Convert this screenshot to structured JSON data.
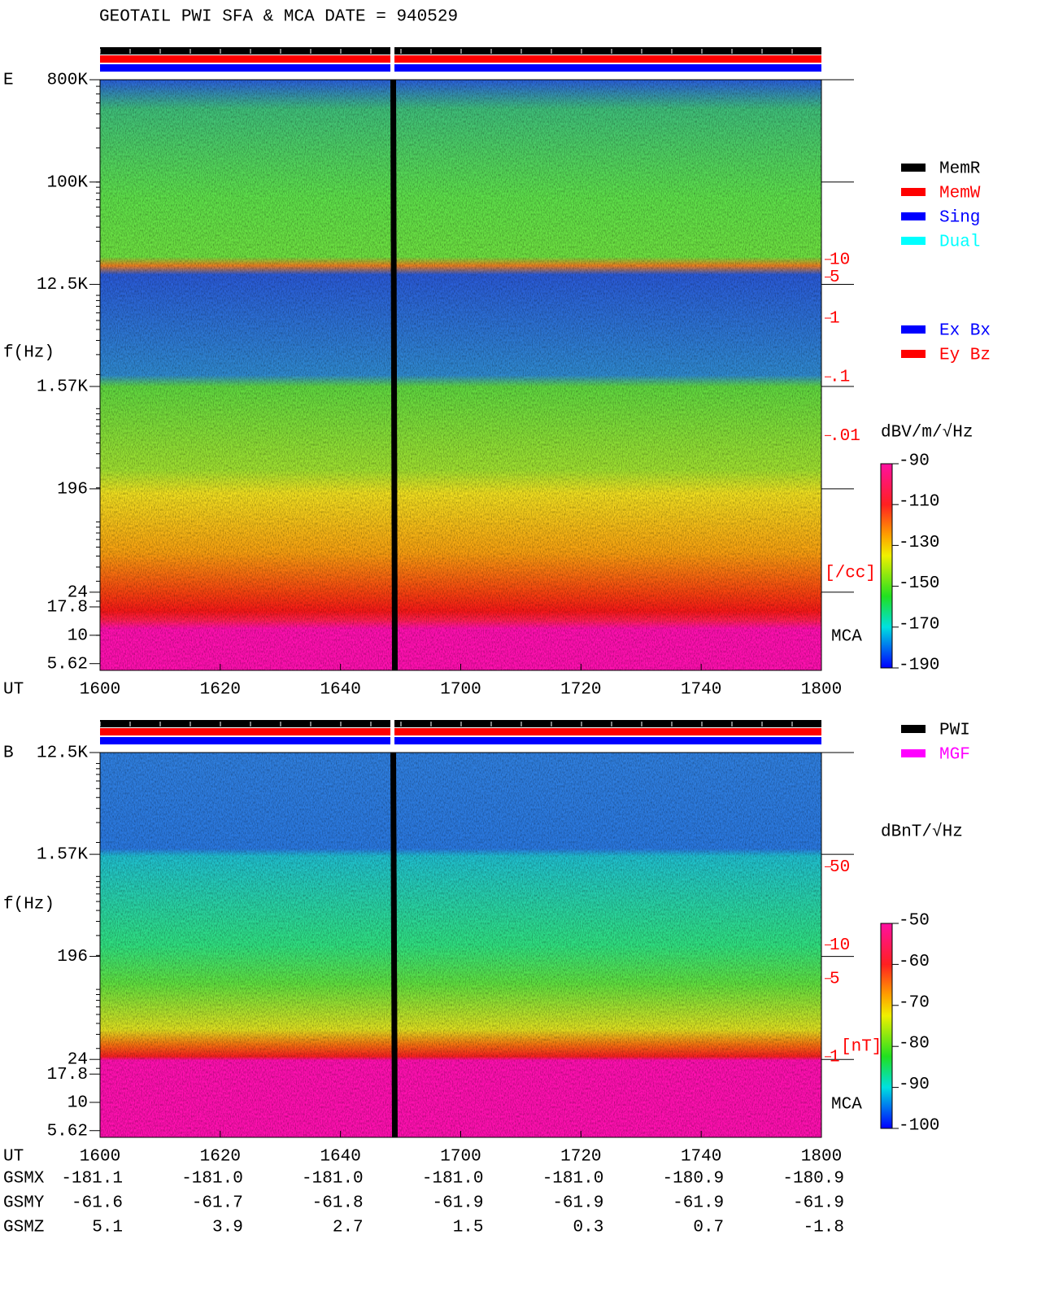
{
  "title": "GEOTAIL   PWI SFA & MCA   DATE = 940529",
  "chart_data": [
    {
      "type": "spectrogram",
      "panel": "E",
      "ylabel": "f(Hz)",
      "xlabel": "UT",
      "yscale": "log",
      "ylim": [
        4.9,
        800000
      ],
      "yticks": [
        {
          "value": 800000,
          "label": "800K"
        },
        {
          "value": 100000,
          "label": "100K"
        },
        {
          "value": 12500,
          "label": "12.5K"
        },
        {
          "value": 1570,
          "label": "1.57K"
        },
        196,
        24,
        17.8,
        10,
        5.62
      ],
      "xticks": [
        "1600",
        "1620",
        "1640",
        "1700",
        "1720",
        "1740",
        "1800"
      ],
      "y2label": "[/cc]",
      "y2scale": "log",
      "y2lim": [
        1e-06,
        11500
      ],
      "y2ticks": [
        10,
        5,
        1,
        {
          "value": 0.1,
          "label": ".1"
        },
        {
          "value": 0.01,
          "label": ".01"
        }
      ],
      "mca_label": "MCA",
      "legend": [
        {
          "name": "MemR",
          "color": "#000000"
        },
        {
          "name": "MemW",
          "color": "#ff0000"
        },
        {
          "name": "Sing",
          "color": "#0000ff"
        },
        {
          "name": "Dual",
          "color": "#00ffff"
        }
      ],
      "legend2": [
        {
          "name": "Ex Bx",
          "color": "#0000ff"
        },
        {
          "name": "Ey Bz",
          "color": "#ff0000"
        }
      ],
      "colorbar": {
        "label": "dBV/m/√Hz",
        "lim": [
          -190,
          -90
        ],
        "ticks": [
          -90,
          -110,
          -130,
          -150,
          -170,
          -190
        ]
      }
    },
    {
      "type": "spectrogram",
      "panel": "B",
      "ylabel": "f(Hz)",
      "xlabel": "UT",
      "yscale": "log",
      "ylim": [
        4.9,
        12500
      ],
      "yticks": [
        {
          "value": 12500,
          "label": "12.5K"
        },
        {
          "value": 1570,
          "label": "1.57K"
        },
        196,
        24,
        17.8,
        10,
        5.62
      ],
      "xticks": [
        "1600",
        "1620",
        "1640",
        "1700",
        "1720",
        "1740",
        "1800"
      ],
      "y2label": "[nT]",
      "y2scale": "log",
      "y2lim": [
        0.19,
        525
      ],
      "y2ticks": [
        50,
        10,
        5,
        1
      ],
      "mca_label": "MCA",
      "legend": [
        {
          "name": "PWI",
          "color": "#000000"
        },
        {
          "name": "MGF",
          "color": "#ff00ff"
        }
      ],
      "colorbar": {
        "label": "dBnT/√Hz",
        "lim": [
          -100,
          -50
        ],
        "ticks": [
          -50,
          -60,
          -70,
          -80,
          -90,
          -100
        ]
      }
    }
  ],
  "orbit": {
    "rows": [
      {
        "label": "GSMX",
        "values": [
          "-181.1",
          "-181.0",
          "-181.0",
          "-181.0",
          "-181.0",
          "-180.9",
          "-180.9"
        ]
      },
      {
        "label": "GSMY",
        "values": [
          "-61.6",
          "-61.7",
          "-61.8",
          "-61.9",
          "-61.9",
          "-61.9",
          "-61.9"
        ]
      },
      {
        "label": "GSMZ",
        "values": [
          "5.1",
          "3.9",
          "2.7",
          "1.5",
          "0.3",
          "0.7",
          "-1.8"
        ]
      }
    ]
  }
}
